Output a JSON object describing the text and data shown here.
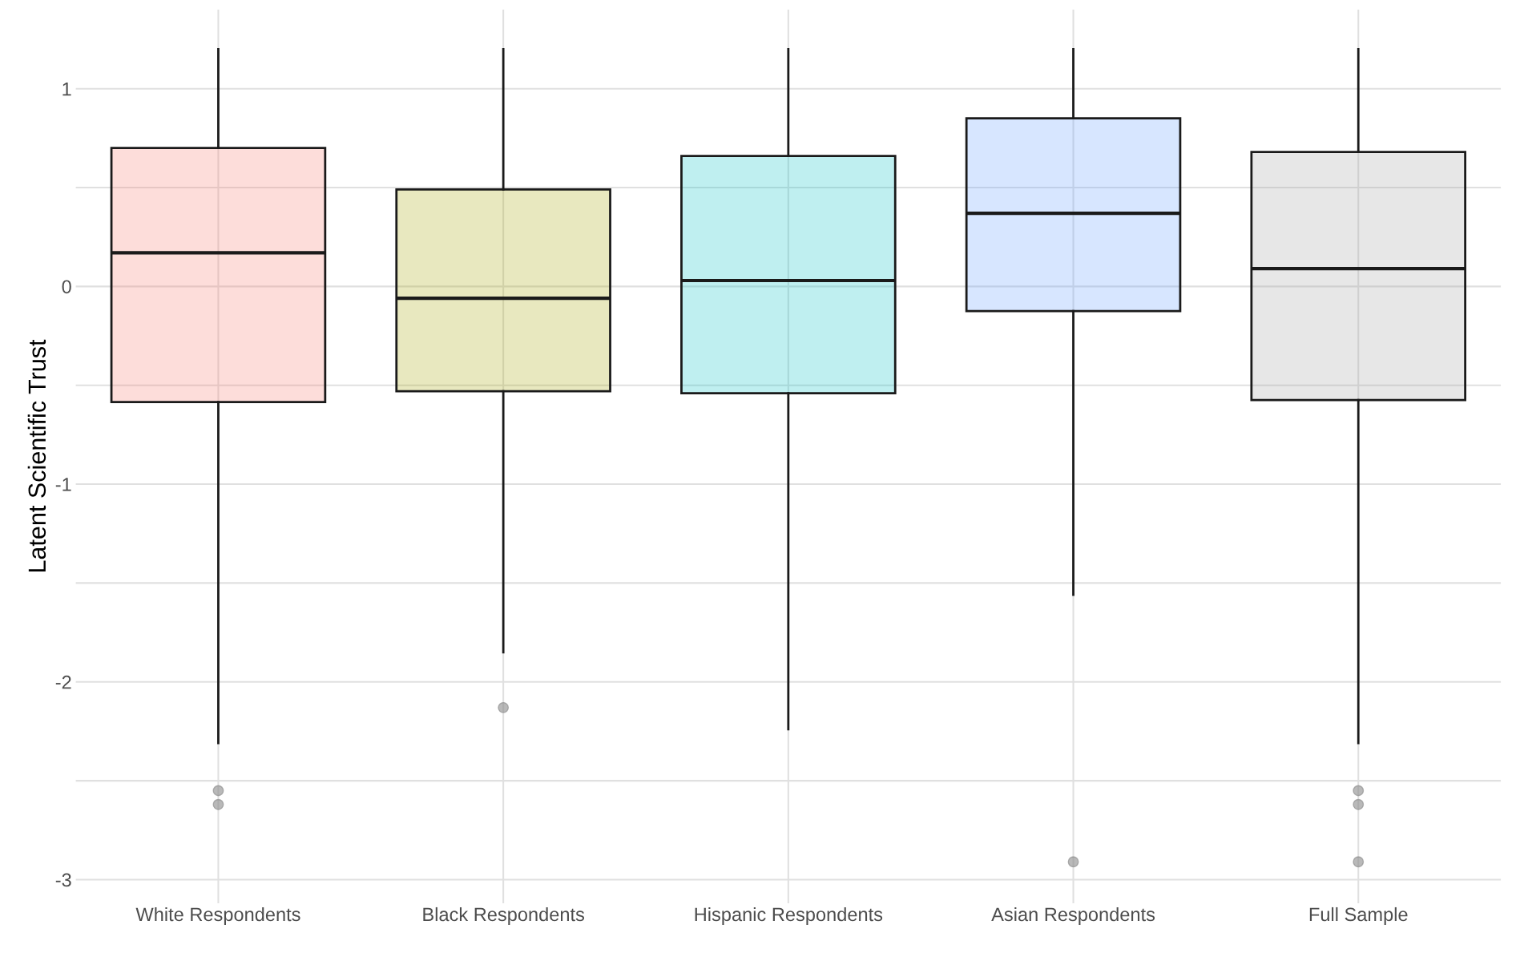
{
  "chart_data": {
    "type": "box",
    "ylabel": "Latent Scientific Trust",
    "categories": [
      "White Respondents",
      "Black Respondents",
      "Hispanic Respondents",
      "Asian Respondents",
      "Full Sample"
    ],
    "colors": [
      "#f8766d",
      "#a3a500",
      "#00bfc4",
      "#619cff",
      "#9e9e9e"
    ],
    "boxes": [
      {
        "low": -2.31,
        "q1": -0.585,
        "median": 0.17,
        "q3": 0.7,
        "high": 1.2,
        "outliers": [
          -2.55,
          -2.62
        ]
      },
      {
        "low": -1.85,
        "q1": -0.53,
        "median": -0.06,
        "q3": 0.49,
        "high": 1.2,
        "outliers": [
          -2.13
        ]
      },
      {
        "low": -2.24,
        "q1": -0.54,
        "median": 0.03,
        "q3": 0.66,
        "high": 1.2
      },
      {
        "low": -1.56,
        "q1": -0.125,
        "median": 0.37,
        "q3": 0.85,
        "high": 1.2,
        "outliers": [
          -2.91
        ]
      },
      {
        "low": -2.31,
        "q1": -0.575,
        "median": 0.09,
        "q3": 0.68,
        "high": 1.2,
        "outliers": [
          -2.55,
          -2.62,
          -2.91
        ]
      }
    ],
    "ylim": [
      -3.12,
      1.4
    ],
    "yticks": [
      -3,
      {
        "value": -2.5,
        "label": null
      },
      -2,
      {
        "value": -1.5,
        "label": null
      },
      -1,
      {
        "value": -0.5,
        "label": null
      },
      0,
      {
        "value": 0.5,
        "label": null
      },
      1
    ],
    "grid": true
  }
}
